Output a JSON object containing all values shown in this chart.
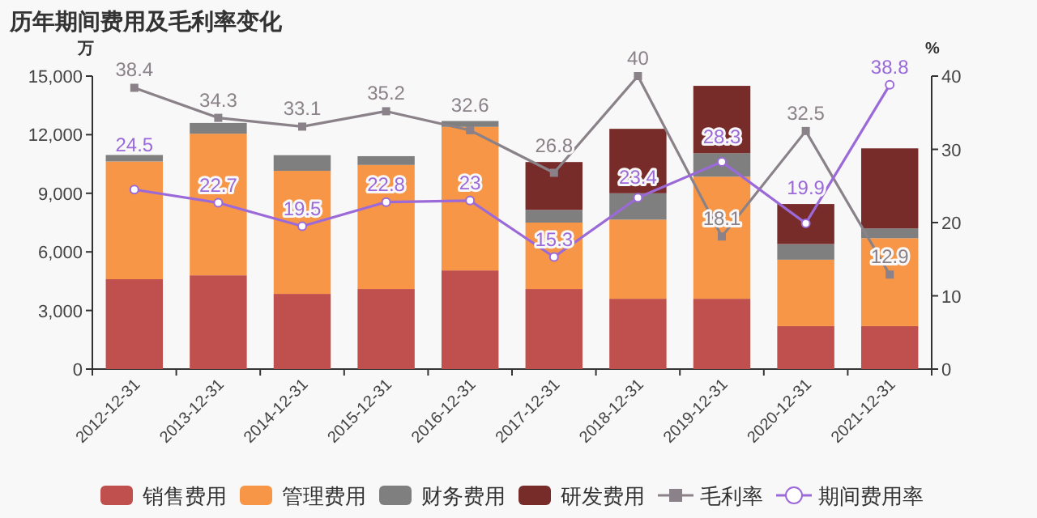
{
  "chart_data": {
    "type": "bar",
    "stacked": true,
    "title": "历年期间费用及毛利率变化",
    "ylabel": "万",
    "y2label": "%",
    "categories": [
      "2012-12-31",
      "2013-12-31",
      "2014-12-31",
      "2015-12-31",
      "2016-12-31",
      "2017-12-31",
      "2018-12-31",
      "2019-12-31",
      "2020-12-31",
      "2021-12-31"
    ],
    "ylim": [
      0,
      15000
    ],
    "yticks": [
      {
        "value": 0,
        "label": "0"
      },
      {
        "value": 3000,
        "label": "3,000"
      },
      {
        "value": 6000,
        "label": "6,000"
      },
      {
        "value": 9000,
        "label": "9,000"
      },
      {
        "value": 12000,
        "label": "12,000"
      },
      {
        "value": 15000,
        "label": "15,000"
      }
    ],
    "y2lim": [
      0,
      40
    ],
    "y2ticks": [
      0,
      10,
      20,
      30,
      40
    ],
    "grid": false,
    "legend": "bottom",
    "series": [
      {
        "name": "销售费用",
        "color": "#c0504d",
        "values": [
          4600,
          4800,
          3850,
          4100,
          5050,
          4100,
          3600,
          3600,
          2200,
          2200
        ]
      },
      {
        "name": "管理费用",
        "color": "#f79646",
        "values": [
          6030,
          7250,
          6300,
          6350,
          7350,
          3400,
          4050,
          6250,
          3400,
          4500
        ]
      },
      {
        "name": "财务费用",
        "color": "#7f7f7f",
        "values": [
          330,
          550,
          800,
          450,
          300,
          650,
          1350,
          1200,
          800,
          500
        ]
      },
      {
        "name": "研发费用",
        "color": "#772c2a",
        "values": [
          null,
          null,
          null,
          null,
          null,
          2450,
          3300,
          3450,
          2050,
          4100
        ]
      },
      {
        "name": "毛利率",
        "type": "line",
        "axis": "y2",
        "marker": "square",
        "color": "#8a8288",
        "values": [
          38.4,
          34.3,
          33.1,
          35.2,
          32.6,
          26.8,
          40,
          18.1,
          32.5,
          12.9
        ],
        "value_labels": [
          "38.4",
          "34.3",
          "33.1",
          "35.2",
          "32.6",
          "26.8",
          "40",
          "18.1",
          "32.5",
          "12.9"
        ]
      },
      {
        "name": "期间费用率",
        "type": "line",
        "axis": "y2",
        "marker": "circle",
        "color": "#9b6ad8",
        "values": [
          24.5,
          22.7,
          19.5,
          22.8,
          23,
          15.3,
          23.4,
          28.3,
          19.9,
          38.8
        ],
        "value_labels": [
          "24.5",
          "22.7",
          "19.5",
          "22.8",
          "23",
          "15.3",
          "23.4",
          "28.3",
          "19.9",
          "38.8"
        ]
      }
    ]
  }
}
